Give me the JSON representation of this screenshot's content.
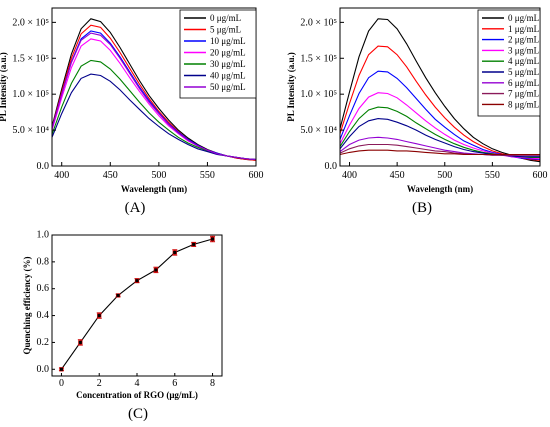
{
  "chart_data": [
    {
      "type": "line",
      "panel_label": "(A)",
      "xlabel": "Wavelength (nm)",
      "ylabel": "PL Intensity (a.u.)",
      "xlim": [
        390,
        600
      ],
      "ylim": [
        0,
        220000
      ],
      "x_ticks": [
        "400",
        "450",
        "500",
        "550",
        "600"
      ],
      "y_ticks": [
        "0.0",
        "5.0 × 10⁴",
        "1.0 × 10⁵",
        "1.5 × 10⁵",
        "2.0 × 10⁵"
      ],
      "legend_position": "top-right",
      "x": [
        390,
        400,
        410,
        420,
        430,
        440,
        450,
        460,
        470,
        480,
        490,
        500,
        510,
        520,
        530,
        540,
        550,
        560,
        570,
        580,
        590,
        600
      ],
      "series": [
        {
          "name": "0 μg/mL",
          "color": "#000000",
          "values": [
            55000,
            107000,
            156000,
            191000,
            205000,
            201000,
            186000,
            165000,
            142000,
            119000,
            98000,
            80000,
            64000,
            50000,
            39000,
            30000,
            23000,
            18000,
            14000,
            11000,
            9000,
            8000
          ]
        },
        {
          "name": "5 μg/mL",
          "color": "#ff0000",
          "values": [
            53000,
            103000,
            150000,
            184000,
            196000,
            193000,
            178000,
            158000,
            136000,
            114000,
            94000,
            76000,
            61000,
            48000,
            37000,
            29000,
            22000,
            17000,
            14000,
            11000,
            9000,
            8000
          ]
        },
        {
          "name": "10 μg/mL",
          "color": "#0000ff",
          "values": [
            52000,
            100000,
            145000,
            177000,
            188000,
            185000,
            171000,
            152000,
            131000,
            110000,
            91000,
            74000,
            59000,
            47000,
            37000,
            29000,
            22000,
            18000,
            14000,
            12000,
            10000,
            9000
          ]
        },
        {
          "name": "20 μg/mL",
          "color": "#ff00ff",
          "values": [
            50000,
            95000,
            137000,
            167000,
            177000,
            174000,
            161000,
            143000,
            123000,
            104000,
            86000,
            70000,
            56000,
            45000,
            35000,
            28000,
            22000,
            17000,
            14000,
            12000,
            10000,
            9000
          ]
        },
        {
          "name": "30 μg/mL",
          "color": "#008000",
          "values": [
            44000,
            82000,
            115000,
            139000,
            147000,
            145000,
            135000,
            121000,
            105000,
            89000,
            74000,
            61000,
            50000,
            40000,
            32000,
            26000,
            21000,
            17000,
            14000,
            12000,
            10000,
            9000
          ]
        },
        {
          "name": "40 μg/mL",
          "color": "#00008b",
          "values": [
            40000,
            73000,
            102000,
            122000,
            128000,
            126000,
            118000,
            106000,
            92000,
            79000,
            66000,
            55000,
            45000,
            37000,
            30000,
            24000,
            20000,
            16000,
            14000,
            12000,
            10000,
            9000
          ]
        },
        {
          "name": "50 μg/mL",
          "color": "#9400d3",
          "values": [
            52000,
            100000,
            144000,
            175000,
            185000,
            182000,
            169000,
            150000,
            129000,
            108000,
            89000,
            73000,
            58000,
            46000,
            36000,
            28000,
            22000,
            17000,
            14000,
            12000,
            10000,
            9000
          ]
        }
      ]
    },
    {
      "type": "line",
      "panel_label": "(B)",
      "xlabel": "Wavelength (nm)",
      "ylabel": "PL Intensity (a.u.)",
      "xlim": [
        390,
        600
      ],
      "ylim": [
        0,
        220000
      ],
      "x_ticks": [
        "400",
        "450",
        "500",
        "550",
        "600"
      ],
      "y_ticks": [
        "0.0",
        "5.0 × 10⁴",
        "1.0 × 10⁵",
        "1.5 × 10⁵",
        "2.0 × 10⁵"
      ],
      "legend_position": "top-right",
      "x": [
        390,
        400,
        410,
        420,
        430,
        440,
        450,
        460,
        470,
        480,
        490,
        500,
        510,
        520,
        530,
        540,
        550,
        560,
        570,
        580,
        590,
        600
      ],
      "series": [
        {
          "name": "0 μg/mL",
          "color": "#000000",
          "values": [
            52000,
            103000,
            152000,
            188000,
            205000,
            204000,
            191000,
            170000,
            146000,
            123000,
            102000,
            83000,
            66000,
            52000,
            40000,
            31000,
            24000,
            19000,
            15000,
            11000,
            8000,
            6000
          ]
        },
        {
          "name": "1 μg/mL",
          "color": "#ff0000",
          "values": [
            45000,
            87000,
            126000,
            155000,
            167000,
            166000,
            155000,
            138000,
            118000,
            99000,
            82000,
            67000,
            54000,
            43000,
            34000,
            27000,
            21000,
            17000,
            14000,
            11000,
            9000,
            8000
          ]
        },
        {
          "name": "2 μg/mL",
          "color": "#0000ff",
          "values": [
            37000,
            70000,
            101000,
            123000,
            132000,
            131000,
            122000,
            109000,
            94000,
            79000,
            65000,
            54000,
            44000,
            35000,
            29000,
            23000,
            19000,
            16000,
            13000,
            11000,
            10000,
            9000
          ]
        },
        {
          "name": "3 μg/mL",
          "color": "#ff00ff",
          "values": [
            31000,
            57000,
            80000,
            96000,
            102000,
            101000,
            95000,
            85000,
            74000,
            63000,
            53000,
            44000,
            36000,
            30000,
            25000,
            21000,
            18000,
            15000,
            13000,
            12000,
            11000,
            10000
          ]
        },
        {
          "name": "4 μg/mL",
          "color": "#008000",
          "values": [
            27000,
            48000,
            66000,
            78000,
            82000,
            81000,
            76000,
            69000,
            60000,
            52000,
            44000,
            37000,
            31000,
            26000,
            22000,
            19000,
            17000,
            15000,
            14000,
            13000,
            12000,
            12000
          ]
        },
        {
          "name": "5 μg/mL",
          "color": "#00008b",
          "values": [
            24000,
            41000,
            55000,
            63000,
            66000,
            65000,
            61000,
            56000,
            50000,
            43000,
            37000,
            32000,
            27000,
            23000,
            20000,
            18000,
            16000,
            15000,
            14000,
            13000,
            13000,
            13000
          ]
        },
        {
          "name": "6 μg/mL",
          "color": "#9400d3",
          "values": [
            20000,
            30000,
            36000,
            39000,
            40000,
            39000,
            37000,
            34000,
            31000,
            28000,
            25000,
            22000,
            20000,
            18000,
            17000,
            16000,
            15000,
            15000,
            15000,
            15000,
            15000,
            15000
          ]
        },
        {
          "name": "7 μg/mL",
          "color": "#8b1a5a",
          "values": [
            18000,
            24000,
            28000,
            30000,
            30000,
            30000,
            29000,
            27000,
            25000,
            23000,
            21000,
            20000,
            18000,
            17000,
            16000,
            16000,
            15000,
            15000,
            15000,
            15000,
            15000,
            15000
          ]
        },
        {
          "name": "8 μg/mL",
          "color": "#8b0000",
          "values": [
            16000,
            19000,
            21000,
            22000,
            22000,
            22000,
            21000,
            21000,
            20000,
            19000,
            18000,
            17000,
            17000,
            16000,
            16000,
            16000,
            16000,
            16000,
            16000,
            16000,
            16000,
            16000
          ]
        }
      ]
    },
    {
      "type": "scatter",
      "panel_label": "(C)",
      "xlabel": "Concentration of RGO (μg/mL)",
      "ylabel": "Quenching efficiency (%)",
      "xlim": [
        -0.5,
        8.5
      ],
      "ylim": [
        -0.05,
        1.0
      ],
      "x_ticks": [
        "0",
        "2",
        "4",
        "6",
        "8"
      ],
      "y_ticks": [
        "0.0",
        "0.2",
        "0.4",
        "0.6",
        "0.8",
        "1.0"
      ],
      "grid": false,
      "x": [
        0,
        1,
        2,
        3,
        4,
        5,
        6,
        7,
        8
      ],
      "series": [
        {
          "values": [
            0.0,
            0.2,
            0.4,
            0.55,
            0.66,
            0.74,
            0.87,
            0.93,
            0.97
          ],
          "errors": [
            0.01,
            0.02,
            0.02,
            0.01,
            0.015,
            0.02,
            0.02,
            0.015,
            0.02
          ],
          "color": "#000000",
          "marker_color": "#cc0000"
        }
      ]
    }
  ]
}
